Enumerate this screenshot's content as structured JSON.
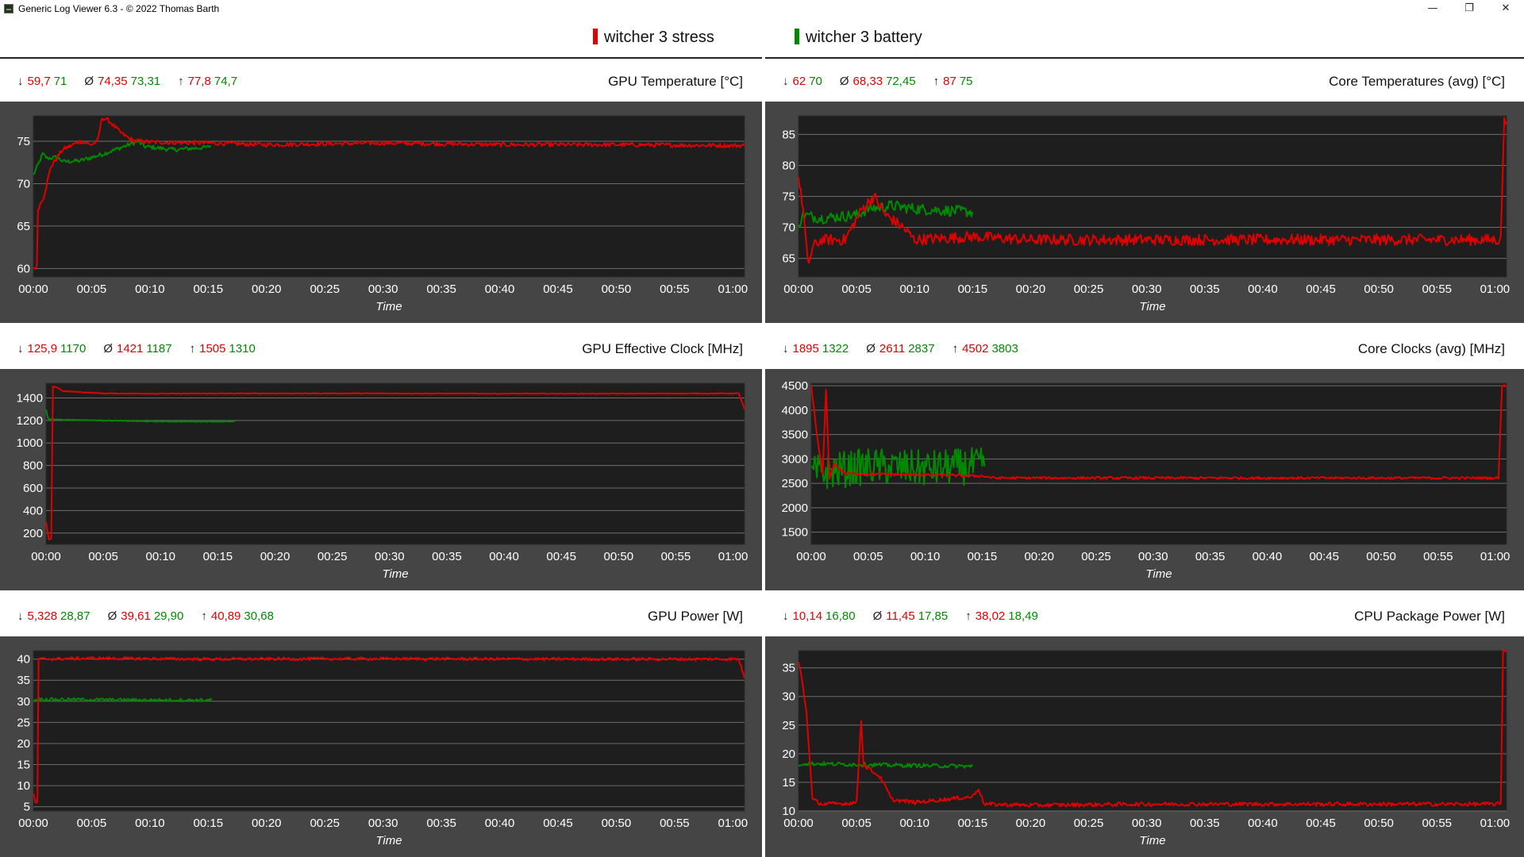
{
  "window": {
    "title": "Generic Log Viewer 6.3 - © 2022 Thomas Barth",
    "minimize": "—",
    "restore": "❐",
    "close": "✕"
  },
  "legend": [
    {
      "name": "witcher 3 stress",
      "color": "#e00000"
    },
    {
      "name": "witcher 3 battery",
      "color": "#008a00"
    }
  ],
  "colors": {
    "stress": "#e00000",
    "battery": "#008a00",
    "plot_bg": "#1e1e1e",
    "frame_bg": "#454545",
    "grid": "#6e6e6e"
  },
  "xaxis_label": "Time",
  "chart_data": [
    {
      "id": "gpu-temp",
      "type": "line",
      "title": "GPU Temperature [°C]",
      "stats": {
        "min": [
          "59,7",
          "71"
        ],
        "avg": [
          "74,35",
          "73,31"
        ],
        "max": [
          "77,8",
          "74,7"
        ]
      },
      "xlabel": "Time",
      "x_ticks": [
        "00:00",
        "00:05",
        "00:10",
        "00:15",
        "00:20",
        "00:25",
        "00:30",
        "00:35",
        "00:40",
        "00:45",
        "00:50",
        "00:55",
        "01:00"
      ],
      "ylim": [
        59,
        78
      ],
      "y_ticks": [
        60,
        65,
        70,
        75
      ],
      "series": [
        {
          "name": "witcher 3 stress",
          "color": "#e00000",
          "noise": 0.25,
          "points": [
            [
              0,
              60
            ],
            [
              0.3,
              60.2
            ],
            [
              0.4,
              67
            ],
            [
              0.9,
              68.5
            ],
            [
              1.5,
              72
            ],
            [
              2.5,
              74
            ],
            [
              4,
              75
            ],
            [
              5,
              74.6
            ],
            [
              5.5,
              75
            ],
            [
              5.9,
              77.8
            ],
            [
              6.5,
              77.4
            ],
            [
              7.5,
              76
            ],
            [
              8.5,
              75.1
            ],
            [
              10,
              74.9
            ],
            [
              15,
              74.8
            ],
            [
              20,
              74.6
            ],
            [
              30,
              74.8
            ],
            [
              40,
              74.6
            ],
            [
              50,
              74.6
            ],
            [
              60,
              74.5
            ],
            [
              61,
              74.5
            ]
          ]
        },
        {
          "name": "witcher 3 battery",
          "color": "#008a00",
          "noise": 0.25,
          "points": [
            [
              0,
              71
            ],
            [
              0.5,
              72.5
            ],
            [
              0.8,
              73.5
            ],
            [
              1.2,
              73
            ],
            [
              2,
              73.1
            ],
            [
              2.6,
              72.6
            ],
            [
              4,
              72.7
            ],
            [
              6,
              73.5
            ],
            [
              9,
              75
            ],
            [
              9.5,
              74.4
            ],
            [
              12,
              74
            ],
            [
              15,
              74.3
            ],
            [
              15.2,
              74.5
            ]
          ]
        }
      ]
    },
    {
      "id": "core-temp",
      "type": "line",
      "title": "Core Temperatures (avg) [°C]",
      "stats": {
        "min": [
          "62",
          "70"
        ],
        "avg": [
          "68,33",
          "72,45"
        ],
        "max": [
          "87",
          "75"
        ]
      },
      "xlabel": "Time",
      "x_ticks": [
        "00:00",
        "00:05",
        "00:10",
        "00:15",
        "00:20",
        "00:25",
        "00:30",
        "00:35",
        "00:40",
        "00:45",
        "00:50",
        "00:55",
        "01:00"
      ],
      "ylim": [
        62,
        88
      ],
      "y_ticks": [
        65,
        70,
        75,
        80,
        85
      ],
      "series": [
        {
          "name": "witcher 3 stress",
          "color": "#e00000",
          "noise": 0.9,
          "points": [
            [
              0,
              78
            ],
            [
              0.4,
              73
            ],
            [
              0.8,
              64
            ],
            [
              1.3,
              67
            ],
            [
              2,
              68
            ],
            [
              4,
              68
            ],
            [
              5.5,
              73
            ],
            [
              6.5,
              75
            ],
            [
              7.5,
              72
            ],
            [
              9,
              70
            ],
            [
              10,
              68
            ],
            [
              15,
              68.5
            ],
            [
              20,
              68
            ],
            [
              30,
              68
            ],
            [
              40,
              68
            ],
            [
              50,
              68
            ],
            [
              60.5,
              68
            ],
            [
              60.6,
              75
            ],
            [
              60.8,
              87
            ],
            [
              61,
              87
            ]
          ]
        },
        {
          "name": "witcher 3 battery",
          "color": "#008a00",
          "noise": 0.9,
          "points": [
            [
              0,
              70
            ],
            [
              0.3,
              72
            ],
            [
              2,
              71.5
            ],
            [
              5,
              72
            ],
            [
              6,
              73
            ],
            [
              8,
              73.5
            ],
            [
              10,
              73
            ],
            [
              15,
              72.5
            ]
          ]
        }
      ]
    },
    {
      "id": "gpu-clock",
      "type": "line",
      "title": "GPU Effective Clock [MHz]",
      "stats": {
        "min": [
          "125,9",
          "1170"
        ],
        "avg": [
          "1421",
          "1187"
        ],
        "max": [
          "1505",
          "1310"
        ]
      },
      "xlabel": "Time",
      "x_ticks": [
        "00:00",
        "00:05",
        "00:10",
        "00:15",
        "00:20",
        "00:25",
        "00:30",
        "00:35",
        "00:40",
        "00:45",
        "00:50",
        "00:55",
        "01:00"
      ],
      "ylim": [
        100,
        1530
      ],
      "y_ticks": [
        200,
        400,
        600,
        800,
        1000,
        1200,
        1400
      ],
      "series": [
        {
          "name": "witcher 3 stress",
          "color": "#e00000",
          "noise": 3,
          "points": [
            [
              0,
              300
            ],
            [
              0.25,
              140
            ],
            [
              0.45,
              150
            ],
            [
              0.6,
              1505
            ],
            [
              1,
              1490
            ],
            [
              1.5,
              1460
            ],
            [
              5,
              1440
            ],
            [
              10,
              1438
            ],
            [
              20,
              1440
            ],
            [
              30,
              1440
            ],
            [
              40,
              1438
            ],
            [
              50,
              1438
            ],
            [
              60.5,
              1440
            ],
            [
              61,
              1300
            ]
          ]
        },
        {
          "name": "witcher 3 battery",
          "color": "#008a00",
          "noise": 3,
          "points": [
            [
              0,
              1300
            ],
            [
              0.2,
              1210
            ],
            [
              5,
              1200
            ],
            [
              10,
              1190
            ],
            [
              16.5,
              1190
            ]
          ]
        }
      ]
    },
    {
      "id": "core-clock",
      "type": "line",
      "title": "Core Clocks (avg) [MHz]",
      "stats": {
        "min": [
          "1895",
          "1322"
        ],
        "avg": [
          "2611",
          "2837"
        ],
        "max": [
          "4502",
          "3803"
        ]
      },
      "xlabel": "Time",
      "x_ticks": [
        "00:00",
        "00:05",
        "00:10",
        "00:15",
        "00:20",
        "00:25",
        "00:30",
        "00:35",
        "00:40",
        "00:45",
        "00:50",
        "00:55",
        "01:00"
      ],
      "ylim": [
        1250,
        4550
      ],
      "y_ticks": [
        1500,
        2000,
        2500,
        3000,
        3500,
        4000,
        4500
      ],
      "series": [
        {
          "name": "witcher 3 stress",
          "color": "#e00000",
          "noise": 25,
          "points": [
            [
              0,
              4500
            ],
            [
              0.5,
              3500
            ],
            [
              1,
              2700
            ],
            [
              1.3,
              4400
            ],
            [
              1.6,
              2600
            ],
            [
              2,
              2900
            ],
            [
              3,
              2700
            ],
            [
              15,
              2650
            ],
            [
              16,
              2610
            ],
            [
              20,
              2610
            ],
            [
              30,
              2610
            ],
            [
              40,
              2610
            ],
            [
              50,
              2610
            ],
            [
              60.3,
              2610
            ],
            [
              60.6,
              4500
            ],
            [
              61,
              4500
            ]
          ]
        },
        {
          "name": "witcher 3 battery",
          "color": "#008a00",
          "noise": 380,
          "points": [
            [
              0,
              2700
            ],
            [
              5,
              2850
            ],
            [
              10,
              2800
            ],
            [
              14,
              2850
            ],
            [
              15.2,
              2850
            ]
          ]
        }
      ]
    },
    {
      "id": "gpu-power",
      "type": "line",
      "title": "GPU Power [W]",
      "stats": {
        "min": [
          "5,328",
          "28,87"
        ],
        "avg": [
          "39,61",
          "29,90"
        ],
        "max": [
          "40,89",
          "30,68"
        ]
      },
      "xlabel": "Time",
      "x_ticks": [
        "00:00",
        "00:05",
        "00:10",
        "00:15",
        "00:20",
        "00:25",
        "00:30",
        "00:35",
        "00:40",
        "00:45",
        "00:50",
        "00:55",
        "01:00"
      ],
      "ylim": [
        4,
        42
      ],
      "y_ticks": [
        5,
        10,
        15,
        20,
        25,
        30,
        35,
        40
      ],
      "series": [
        {
          "name": "witcher 3 stress",
          "color": "#e00000",
          "noise": 0.35,
          "points": [
            [
              0,
              8
            ],
            [
              0.2,
              6
            ],
            [
              0.35,
              6
            ],
            [
              0.45,
              40
            ],
            [
              5,
              40.2
            ],
            [
              15,
              40
            ],
            [
              30,
              40.1
            ],
            [
              45,
              40
            ],
            [
              60.5,
              40
            ],
            [
              61,
              35.5
            ]
          ]
        },
        {
          "name": "witcher 3 battery",
          "color": "#008a00",
          "noise": 0.35,
          "points": [
            [
              0,
              30
            ],
            [
              0.3,
              30.5
            ],
            [
              5,
              30.4
            ],
            [
              10,
              30.3
            ],
            [
              15.3,
              30.3
            ]
          ]
        }
      ]
    },
    {
      "id": "cpu-power",
      "type": "line",
      "title": "CPU Package Power [W]",
      "stats": {
        "min": [
          "10,14",
          "16,80"
        ],
        "avg": [
          "11,45",
          "17,85"
        ],
        "max": [
          "38,02",
          "18,49"
        ]
      },
      "xlabel": "Time",
      "x_ticks": [
        "00:00",
        "00:05",
        "00:10",
        "00:15",
        "00:20",
        "00:25",
        "00:30",
        "00:35",
        "00:40",
        "00:45",
        "00:50",
        "00:55",
        "01:00"
      ],
      "ylim": [
        10,
        38
      ],
      "y_ticks": [
        10,
        15,
        20,
        25,
        30,
        35
      ],
      "series": [
        {
          "name": "witcher 3 stress",
          "color": "#e00000",
          "noise": 0.35,
          "points": [
            [
              0,
              36
            ],
            [
              0.3,
              33
            ],
            [
              0.7,
              27
            ],
            [
              1,
              18
            ],
            [
              1.2,
              12
            ],
            [
              2,
              11.2
            ],
            [
              4,
              11.3
            ],
            [
              5,
              11.5
            ],
            [
              5.4,
              26
            ],
            [
              5.6,
              18
            ],
            [
              6,
              17.5
            ],
            [
              7,
              16
            ],
            [
              7.8,
              13
            ],
            [
              8,
              12
            ],
            [
              10,
              11.5
            ],
            [
              15,
              12.5
            ],
            [
              15.5,
              14
            ],
            [
              16,
              11.2
            ],
            [
              20,
              11
            ],
            [
              30,
              11.2
            ],
            [
              40,
              11.2
            ],
            [
              50,
              11.2
            ],
            [
              60.5,
              11.2
            ],
            [
              60.7,
              38
            ],
            [
              61,
              38
            ]
          ]
        },
        {
          "name": "witcher 3 battery",
          "color": "#008a00",
          "noise": 0.35,
          "points": [
            [
              0,
              18
            ],
            [
              0.3,
              18.3
            ],
            [
              3,
              18.2
            ],
            [
              8,
              18
            ],
            [
              12,
              17.9
            ],
            [
              15,
              17.8
            ]
          ]
        }
      ]
    }
  ]
}
